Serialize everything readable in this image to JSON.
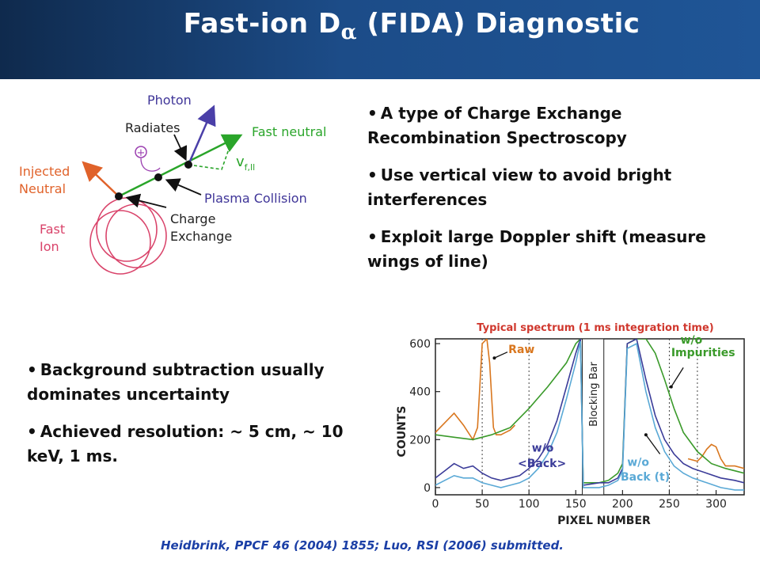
{
  "title": {
    "main": "Fast-ion D",
    "subscript": "α",
    "rest": " (FIDA) Diagnostic"
  },
  "bullets_top": [
    "A type of Charge Exchange Recombination Spectroscopy",
    "Use vertical view to avoid bright interferences",
    "Exploit large Doppler shift (measure wings of line)"
  ],
  "bullets_bottom": [
    "Background subtraction usually dominates uncertainty",
    "Achieved resolution: ~ 5 cm, ~ 10 keV, 1 ms."
  ],
  "diagram": {
    "photon": "Photon",
    "radiates": "Radiates",
    "fast_neutral": "Fast neutral",
    "vf": "v",
    "vf_sub": "f,ll",
    "injected": "Injected",
    "neutral": "Neutral",
    "plasma_collision": "Plasma Collision",
    "charge": "Charge",
    "exchange": "Exchange",
    "fast": "Fast",
    "ion": "Ion",
    "plus": "+"
  },
  "chart_data": {
    "type": "line",
    "title": "Typical spectrum (1 ms integration time)",
    "xlabel": "PIXEL NUMBER",
    "ylabel": "COUNTS",
    "xlim": [
      0,
      330
    ],
    "ylim": [
      -30,
      620
    ],
    "x_ticks": [
      "0",
      "50",
      "100",
      "150",
      "200",
      "250",
      "300"
    ],
    "y_ticks": [
      "0",
      "200",
      "400",
      "600"
    ],
    "dotted_vlines": [
      50,
      100,
      250,
      280
    ],
    "blocking_bar": {
      "label": "Blocking Bar",
      "from": 157,
      "to": 180
    },
    "annotations": {
      "raw": "Raw",
      "wo_impurities_1": "w/o",
      "wo_impurities_2": "Impurities",
      "wo_back_1": "w/o",
      "wo_back_2": "<Back>",
      "wo_back_t_1": "w/o",
      "wo_back_t_2": "Back (t)"
    },
    "series": [
      {
        "name": "Raw",
        "color": "#d9771f",
        "x": [
          0,
          10,
          20,
          30,
          40,
          45,
          50,
          55,
          58,
          62,
          65,
          70,
          75,
          80,
          85
        ],
        "y": [
          230,
          270,
          310,
          260,
          200,
          250,
          600,
          620,
          520,
          250,
          220,
          220,
          230,
          240,
          260
        ]
      },
      {
        "name": "Raw (right)",
        "color": "#d9771f",
        "x": [
          270,
          280,
          285,
          290,
          295,
          300,
          305,
          310,
          320,
          330
        ],
        "y": [
          120,
          110,
          130,
          160,
          180,
          170,
          120,
          90,
          90,
          80
        ]
      },
      {
        "name": "w/o Impurities",
        "color": "#3a9a2a",
        "x": [
          0,
          20,
          40,
          60,
          80,
          100,
          120,
          140,
          150,
          155,
          158,
          175,
          185,
          195,
          200,
          205,
          215,
          225,
          235,
          245,
          255,
          265,
          280,
          295,
          310,
          320,
          330
        ],
        "y": [
          220,
          210,
          200,
          220,
          250,
          330,
          420,
          520,
          600,
          620,
          20,
          20,
          30,
          60,
          100,
          600,
          620,
          620,
          560,
          450,
          330,
          230,
          150,
          100,
          80,
          70,
          60
        ]
      },
      {
        "name": "w/o <Back>",
        "color": "#3b3c99",
        "x": [
          0,
          10,
          20,
          30,
          40,
          50,
          60,
          70,
          80,
          90,
          100,
          110,
          120,
          130,
          140,
          150,
          155,
          158,
          175,
          185,
          195,
          200,
          205,
          215,
          225,
          235,
          245,
          255,
          265,
          275,
          290,
          305,
          320,
          330
        ],
        "y": [
          40,
          70,
          100,
          80,
          90,
          60,
          40,
          30,
          40,
          50,
          80,
          120,
          180,
          280,
          420,
          560,
          620,
          10,
          20,
          20,
          40,
          80,
          600,
          620,
          450,
          300,
          200,
          140,
          100,
          80,
          60,
          40,
          30,
          20
        ]
      },
      {
        "name": "w/o Back (t)",
        "color": "#5aa9d6",
        "x": [
          0,
          10,
          20,
          30,
          40,
          50,
          60,
          70,
          80,
          90,
          100,
          110,
          120,
          130,
          140,
          150,
          155,
          158,
          175,
          185,
          195,
          200,
          205,
          215,
          225,
          235,
          245,
          255,
          265,
          275,
          290,
          305,
          320,
          330
        ],
        "y": [
          10,
          30,
          50,
          40,
          40,
          20,
          10,
          0,
          10,
          20,
          40,
          80,
          140,
          230,
          370,
          520,
          610,
          0,
          0,
          10,
          30,
          70,
          580,
          600,
          400,
          250,
          150,
          90,
          60,
          40,
          20,
          0,
          -10,
          -10
        ]
      }
    ]
  },
  "citation": "Heidbrink, PPCF 46 (2004) 1855; Luo, RSI (2006) submitted."
}
